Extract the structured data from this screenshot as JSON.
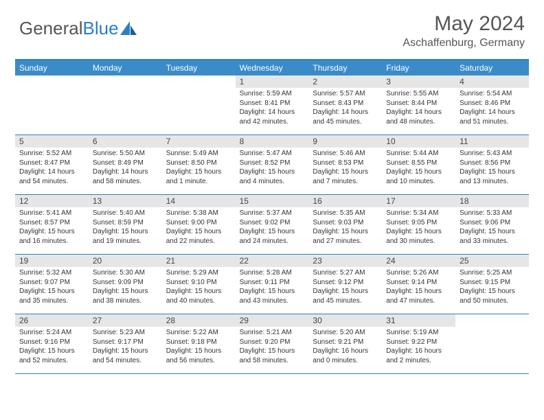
{
  "logo": {
    "text1": "General",
    "text2": "Blue"
  },
  "title": "May 2024",
  "location": "Aschaffenburg, Germany",
  "dow": [
    "Sunday",
    "Monday",
    "Tuesday",
    "Wednesday",
    "Thursday",
    "Friday",
    "Saturday"
  ],
  "colors": {
    "header_bar": "#3b8bc9",
    "rule": "#2a7fbf",
    "daynum_bg": "#e6e6e6"
  },
  "weeks": [
    [
      {
        "n": "",
        "empty": true
      },
      {
        "n": "",
        "empty": true
      },
      {
        "n": "",
        "empty": true
      },
      {
        "n": "1",
        "sr": "5:59 AM",
        "ss": "8:41 PM",
        "dl": "14 hours and 42 minutes."
      },
      {
        "n": "2",
        "sr": "5:57 AM",
        "ss": "8:43 PM",
        "dl": "14 hours and 45 minutes."
      },
      {
        "n": "3",
        "sr": "5:55 AM",
        "ss": "8:44 PM",
        "dl": "14 hours and 48 minutes."
      },
      {
        "n": "4",
        "sr": "5:54 AM",
        "ss": "8:46 PM",
        "dl": "14 hours and 51 minutes."
      }
    ],
    [
      {
        "n": "5",
        "sr": "5:52 AM",
        "ss": "8:47 PM",
        "dl": "14 hours and 54 minutes."
      },
      {
        "n": "6",
        "sr": "5:50 AM",
        "ss": "8:49 PM",
        "dl": "14 hours and 58 minutes."
      },
      {
        "n": "7",
        "sr": "5:49 AM",
        "ss": "8:50 PM",
        "dl": "15 hours and 1 minute."
      },
      {
        "n": "8",
        "sr": "5:47 AM",
        "ss": "8:52 PM",
        "dl": "15 hours and 4 minutes."
      },
      {
        "n": "9",
        "sr": "5:46 AM",
        "ss": "8:53 PM",
        "dl": "15 hours and 7 minutes."
      },
      {
        "n": "10",
        "sr": "5:44 AM",
        "ss": "8:55 PM",
        "dl": "15 hours and 10 minutes."
      },
      {
        "n": "11",
        "sr": "5:43 AM",
        "ss": "8:56 PM",
        "dl": "15 hours and 13 minutes."
      }
    ],
    [
      {
        "n": "12",
        "sr": "5:41 AM",
        "ss": "8:57 PM",
        "dl": "15 hours and 16 minutes."
      },
      {
        "n": "13",
        "sr": "5:40 AM",
        "ss": "8:59 PM",
        "dl": "15 hours and 19 minutes."
      },
      {
        "n": "14",
        "sr": "5:38 AM",
        "ss": "9:00 PM",
        "dl": "15 hours and 22 minutes."
      },
      {
        "n": "15",
        "sr": "5:37 AM",
        "ss": "9:02 PM",
        "dl": "15 hours and 24 minutes."
      },
      {
        "n": "16",
        "sr": "5:35 AM",
        "ss": "9:03 PM",
        "dl": "15 hours and 27 minutes."
      },
      {
        "n": "17",
        "sr": "5:34 AM",
        "ss": "9:05 PM",
        "dl": "15 hours and 30 minutes."
      },
      {
        "n": "18",
        "sr": "5:33 AM",
        "ss": "9:06 PM",
        "dl": "15 hours and 33 minutes."
      }
    ],
    [
      {
        "n": "19",
        "sr": "5:32 AM",
        "ss": "9:07 PM",
        "dl": "15 hours and 35 minutes."
      },
      {
        "n": "20",
        "sr": "5:30 AM",
        "ss": "9:09 PM",
        "dl": "15 hours and 38 minutes."
      },
      {
        "n": "21",
        "sr": "5:29 AM",
        "ss": "9:10 PM",
        "dl": "15 hours and 40 minutes."
      },
      {
        "n": "22",
        "sr": "5:28 AM",
        "ss": "9:11 PM",
        "dl": "15 hours and 43 minutes."
      },
      {
        "n": "23",
        "sr": "5:27 AM",
        "ss": "9:12 PM",
        "dl": "15 hours and 45 minutes."
      },
      {
        "n": "24",
        "sr": "5:26 AM",
        "ss": "9:14 PM",
        "dl": "15 hours and 47 minutes."
      },
      {
        "n": "25",
        "sr": "5:25 AM",
        "ss": "9:15 PM",
        "dl": "15 hours and 50 minutes."
      }
    ],
    [
      {
        "n": "26",
        "sr": "5:24 AM",
        "ss": "9:16 PM",
        "dl": "15 hours and 52 minutes."
      },
      {
        "n": "27",
        "sr": "5:23 AM",
        "ss": "9:17 PM",
        "dl": "15 hours and 54 minutes."
      },
      {
        "n": "28",
        "sr": "5:22 AM",
        "ss": "9:18 PM",
        "dl": "15 hours and 56 minutes."
      },
      {
        "n": "29",
        "sr": "5:21 AM",
        "ss": "9:20 PM",
        "dl": "15 hours and 58 minutes."
      },
      {
        "n": "30",
        "sr": "5:20 AM",
        "ss": "9:21 PM",
        "dl": "16 hours and 0 minutes."
      },
      {
        "n": "31",
        "sr": "5:19 AM",
        "ss": "9:22 PM",
        "dl": "16 hours and 2 minutes."
      },
      {
        "n": "",
        "empty": true
      }
    ]
  ],
  "labels": {
    "sunrise": "Sunrise: ",
    "sunset": "Sunset: ",
    "daylight": "Daylight: "
  }
}
